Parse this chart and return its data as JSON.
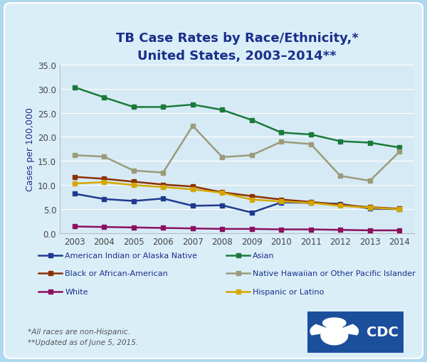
{
  "title_line1": "TB Case Rates by Race/Ethnicity,*",
  "title_line2": "United States, 2003–2014**",
  "ylabel": "Cases per 100,000",
  "years": [
    2003,
    2004,
    2005,
    2006,
    2007,
    2008,
    2009,
    2010,
    2011,
    2012,
    2013,
    2014
  ],
  "ylim": [
    0,
    35
  ],
  "yticks": [
    0.0,
    5.0,
    10.0,
    15.0,
    20.0,
    25.0,
    30.0,
    35.0
  ],
  "series": {
    "American Indian or Alaska Native": {
      "values": [
        8.2,
        7.1,
        6.7,
        7.2,
        5.7,
        5.8,
        4.3,
        6.4,
        6.3,
        6.1,
        5.1,
        5.0
      ],
      "color": "#1F3A8F",
      "marker": "s",
      "linewidth": 1.8
    },
    "Asian": {
      "values": [
        30.3,
        28.2,
        26.2,
        26.2,
        26.7,
        25.6,
        23.5,
        20.9,
        20.5,
        19.1,
        18.8,
        17.8
      ],
      "color": "#1A7A3A",
      "marker": "s",
      "linewidth": 1.8
    },
    "Black or African-American": {
      "values": [
        11.7,
        11.3,
        10.7,
        10.1,
        9.7,
        8.5,
        7.7,
        7.0,
        6.5,
        5.9,
        5.4,
        5.1
      ],
      "color": "#8B3000",
      "marker": "s",
      "linewidth": 1.8
    },
    "Native Hawaiian or Other Pacific Islander": {
      "values": [
        16.2,
        15.9,
        13.0,
        12.6,
        22.3,
        15.8,
        16.2,
        19.0,
        18.5,
        11.9,
        10.9,
        16.9
      ],
      "color": "#9B9B7A",
      "marker": "s",
      "linewidth": 1.8
    },
    "White": {
      "values": [
        1.4,
        1.3,
        1.2,
        1.1,
        1.0,
        0.9,
        0.9,
        0.8,
        0.8,
        0.7,
        0.6,
        0.6
      ],
      "color": "#8B1060",
      "marker": "s",
      "linewidth": 1.8
    },
    "Hispanic or Latino": {
      "values": [
        10.3,
        10.6,
        10.0,
        9.6,
        9.1,
        8.4,
        7.0,
        6.6,
        6.3,
        5.7,
        5.3,
        5.0
      ],
      "color": "#D4A800",
      "marker": "s",
      "linewidth": 1.8
    }
  },
  "legend_order": [
    "American Indian or Alaska Native",
    "Asian",
    "Black or African-American",
    "Native Hawaiian or Other Pacific Islander",
    "White",
    "Hispanic or Latino"
  ],
  "footnote1": "*All races are non-Hispanic.",
  "footnote2": "**Updated as of June 5, 2015.",
  "bg_outer": "#ADD8EE",
  "bg_card": "#DAEEF8",
  "bg_plot": "#D6EAF5",
  "title_color": "#1A2F8A",
  "axis_label_color": "#1A2F8A",
  "tick_color": "#444444",
  "legend_text_color": "#1A2F8A",
  "footnote_color": "#555555"
}
